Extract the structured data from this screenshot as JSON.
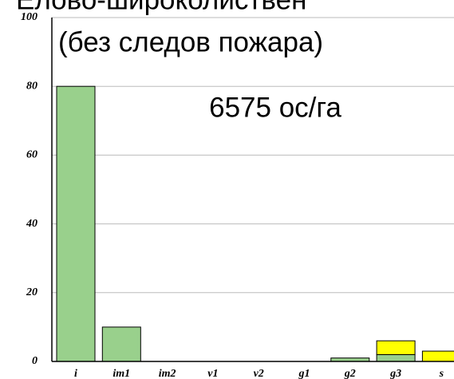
{
  "chart_data": {
    "type": "bar",
    "stacked": true,
    "title": "Елово-широколиствен",
    "subtitle": "(без следов пожара)",
    "annotation": "6575 ос/га",
    "categories": [
      "i",
      "im1",
      "im2",
      "v1",
      "v2",
      "g1",
      "g2",
      "g3",
      "s"
    ],
    "series": [
      {
        "color": "#99d08c",
        "values": [
          80,
          10,
          0,
          0,
          0,
          0,
          1,
          2,
          0
        ]
      },
      {
        "color": "#ffff00",
        "values": [
          0,
          0,
          0,
          0,
          0,
          0,
          0,
          4,
          3
        ]
      }
    ],
    "ylim": [
      0,
      100
    ],
    "yticks": [
      0,
      20,
      40,
      60,
      80,
      100
    ],
    "grid": true
  }
}
